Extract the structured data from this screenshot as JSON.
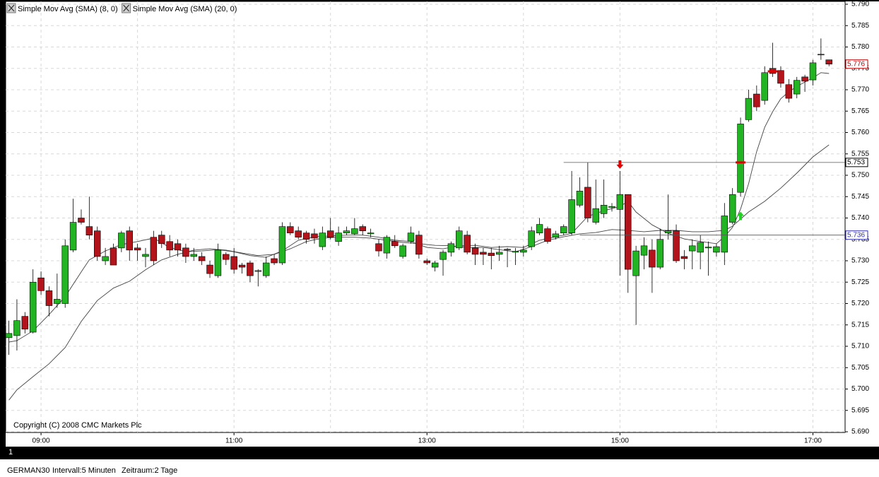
{
  "chart_data": {
    "type": "candlestick",
    "xlim": [
      518,
      1040
    ],
    "ylim": [
      5.69,
      5.79
    ],
    "xticks": [
      {
        "value": 540,
        "label": "09:00"
      },
      {
        "value": 660,
        "label": "11:00"
      },
      {
        "value": 780,
        "label": "13:00"
      },
      {
        "value": 900,
        "label": "15:00"
      },
      {
        "value": 1020,
        "label": "17:00"
      }
    ],
    "xgrid": [
      540,
      600,
      660,
      720,
      780,
      840,
      900,
      960,
      1020
    ],
    "yticks": [
      {
        "value": 5.69,
        "label": "5.690"
      },
      5.695,
      {
        "value": 5.7,
        "label": "5.700"
      },
      5.705,
      {
        "value": 5.71,
        "label": "5.710"
      },
      5.715,
      {
        "value": 5.72,
        "label": "5.720"
      },
      5.725,
      {
        "value": 5.73,
        "label": "5.730"
      },
      5.735,
      {
        "value": 5.74,
        "label": "5.740"
      },
      5.745,
      {
        "value": 5.75,
        "label": "5.750"
      },
      5.755,
      {
        "value": 5.76,
        "label": "5.760"
      },
      5.765,
      {
        "value": 5.77,
        "label": "5.770"
      },
      5.775,
      {
        "value": 5.78,
        "label": "5.780"
      },
      5.785,
      {
        "value": 5.79,
        "label": "5.790"
      }
    ],
    "grid": true,
    "up_color": "#22b422",
    "down_color": "#b3141b",
    "x": [
      520,
      525,
      530,
      535,
      540,
      545,
      550,
      555,
      560,
      565,
      570,
      575,
      580,
      585,
      590,
      595,
      600,
      605,
      610,
      615,
      620,
      625,
      630,
      635,
      640,
      645,
      650,
      655,
      660,
      665,
      670,
      675,
      680,
      685,
      690,
      695,
      700,
      705,
      710,
      715,
      720,
      725,
      730,
      735,
      740,
      745,
      750,
      755,
      760,
      765,
      770,
      775,
      780,
      785,
      790,
      795,
      800,
      805,
      810,
      815,
      820,
      825,
      830,
      835,
      840,
      845,
      850,
      855,
      860,
      865,
      870,
      875,
      880,
      885,
      890,
      895,
      900,
      905,
      910,
      915,
      920,
      925,
      930,
      935,
      940,
      945,
      950,
      955,
      960,
      965,
      970,
      975,
      980,
      985,
      990,
      995,
      1000,
      1005,
      1010,
      1015,
      1020,
      1025,
      1030
    ],
    "open": [
      5.712,
      5.7125,
      5.717,
      5.7133,
      5.726,
      5.723,
      5.72,
      5.72,
      5.7325,
      5.74,
      5.738,
      5.737,
      5.73,
      5.733,
      5.733,
      5.737,
      5.733,
      5.731,
      5.7355,
      5.736,
      5.7345,
      5.734,
      5.733,
      5.731,
      5.731,
      5.729,
      5.7265,
      5.7315,
      5.731,
      5.729,
      5.7295,
      5.7275,
      5.7265,
      5.7305,
      5.7295,
      5.738,
      5.737,
      5.7365,
      5.7363,
      5.7333,
      5.737,
      5.7345,
      5.7365,
      5.7363,
      5.738,
      5.7363,
      5.734,
      5.7318,
      5.7345,
      5.731,
      5.7345,
      5.736,
      5.73,
      5.7285,
      5.7303,
      5.732,
      5.733,
      5.736,
      5.733,
      5.732,
      5.7318,
      5.7315,
      5.7325,
      5.732,
      5.732,
      5.7333,
      5.7365,
      5.7375,
      5.7355,
      5.7365,
      5.7365,
      5.743,
      5.7472,
      5.739,
      5.741,
      5.7425,
      5.742,
      5.7455,
      5.7265,
      5.7313,
      5.7325,
      5.7285,
      5.7365,
      5.737,
      5.731,
      5.7323,
      5.732,
      5.733,
      5.732,
      5.732,
      5.739,
      5.746,
      5.763,
      5.769,
      5.7675,
      5.775,
      5.7745,
      5.7712,
      5.769,
      5.773,
      5.7723,
      5.7782,
      5.777
    ],
    "high": [
      5.716,
      5.721,
      5.718,
      5.728,
      5.7275,
      5.724,
      5.727,
      5.735,
      5.7445,
      5.742,
      5.745,
      5.738,
      5.733,
      5.734,
      5.737,
      5.738,
      5.734,
      5.733,
      5.737,
      5.737,
      5.736,
      5.735,
      5.734,
      5.733,
      5.732,
      5.73,
      5.734,
      5.732,
      5.733,
      5.7295,
      5.73,
      5.728,
      5.731,
      5.7315,
      5.739,
      5.739,
      5.738,
      5.737,
      5.7375,
      5.738,
      5.74,
      5.738,
      5.738,
      5.74,
      5.7385,
      5.7375,
      5.735,
      5.736,
      5.736,
      5.734,
      5.738,
      5.737,
      5.7305,
      5.73,
      5.7325,
      5.7345,
      5.738,
      5.737,
      5.734,
      5.733,
      5.733,
      5.7335,
      5.733,
      5.733,
      5.7335,
      5.738,
      5.74,
      5.738,
      5.737,
      5.7385,
      5.751,
      5.7495,
      5.753,
      5.749,
      5.749,
      5.7435,
      5.751,
      5.7455,
      5.7335,
      5.7355,
      5.735,
      5.7375,
      5.7455,
      5.7385,
      5.7325,
      5.735,
      5.736,
      5.7345,
      5.734,
      5.7435,
      5.747,
      5.7635,
      5.77,
      5.771,
      5.7755,
      5.781,
      5.7755,
      5.7725,
      5.773,
      5.7735,
      5.777,
      5.782,
      5.777
    ],
    "low": [
      5.708,
      5.709,
      5.713,
      5.713,
      5.722,
      5.717,
      5.719,
      5.719,
      5.732,
      5.7385,
      5.735,
      5.73,
      5.729,
      5.729,
      5.732,
      5.73,
      5.73,
      5.7285,
      5.729,
      5.733,
      5.731,
      5.731,
      5.7295,
      5.73,
      5.729,
      5.726,
      5.726,
      5.729,
      5.727,
      5.727,
      5.725,
      5.724,
      5.726,
      5.729,
      5.729,
      5.736,
      5.735,
      5.734,
      5.734,
      5.7325,
      5.735,
      5.7335,
      5.736,
      5.736,
      5.736,
      5.7355,
      5.731,
      5.7305,
      5.733,
      5.7305,
      5.734,
      5.7305,
      5.729,
      5.7275,
      5.7265,
      5.731,
      5.7325,
      5.7315,
      5.729,
      5.729,
      5.728,
      5.73,
      5.7285,
      5.729,
      5.731,
      5.7325,
      5.736,
      5.734,
      5.735,
      5.736,
      5.736,
      5.7425,
      5.739,
      5.7385,
      5.74,
      5.7415,
      5.7265,
      5.7225,
      5.715,
      5.728,
      5.7225,
      5.728,
      5.735,
      5.7295,
      5.728,
      5.728,
      5.728,
      5.7265,
      5.731,
      5.729,
      5.7385,
      5.745,
      5.7625,
      5.765,
      5.7665,
      5.773,
      5.7705,
      5.767,
      5.768,
      5.7695,
      5.771,
      5.777,
      5.7755
    ],
    "close": [
      5.713,
      5.716,
      5.714,
      5.725,
      5.723,
      5.7195,
      5.721,
      5.7335,
      5.739,
      5.739,
      5.736,
      5.731,
      5.731,
      5.729,
      5.7365,
      5.7325,
      5.7325,
      5.7315,
      5.73,
      5.734,
      5.7325,
      5.7325,
      5.731,
      5.7315,
      5.73,
      5.727,
      5.7325,
      5.7303,
      5.728,
      5.7285,
      5.7265,
      5.7277,
      5.7295,
      5.7295,
      5.738,
      5.7365,
      5.7355,
      5.735,
      5.7353,
      5.7365,
      5.7355,
      5.7365,
      5.737,
      5.7375,
      5.737,
      5.7365,
      5.7323,
      5.7355,
      5.7335,
      5.7335,
      5.7365,
      5.7315,
      5.7295,
      5.7295,
      5.732,
      5.734,
      5.737,
      5.732,
      5.7315,
      5.7315,
      5.7312,
      5.732,
      5.7327,
      5.7322,
      5.7325,
      5.737,
      5.7385,
      5.7345,
      5.7363,
      5.738,
      5.7443,
      5.7463,
      5.74,
      5.7422,
      5.743,
      5.7427,
      5.7455,
      5.728,
      5.7323,
      5.7335,
      5.7285,
      5.735,
      5.737,
      5.73,
      5.7305,
      5.7335,
      5.7343,
      5.7332,
      5.7333,
      5.7405,
      5.7455,
      5.762,
      5.768,
      5.766,
      5.774,
      5.7738,
      5.7715,
      5.768,
      5.7722,
      5.772,
      5.7763,
      5.7783,
      5.776
    ],
    "last_price_color": "#c00000",
    "series": [
      {
        "name": "Simple Mov Avg (SMA) (8, 0)",
        "color": "#444444",
        "x": [
          520,
          525,
          535,
          545,
          555,
          565,
          570,
          580,
          590,
          600,
          610,
          620,
          630,
          640,
          650,
          660,
          670,
          680,
          690,
          700,
          710,
          720,
          730,
          740,
          750,
          760,
          770,
          780,
          790,
          800,
          810,
          820,
          830,
          840,
          850,
          860,
          870,
          880,
          890,
          900,
          905,
          910,
          920,
          930,
          940,
          950,
          960,
          965,
          970,
          975,
          980,
          985,
          990,
          995,
          1000,
          1005,
          1010,
          1015,
          1020,
          1025,
          1030
        ],
        "values": [
          5.711,
          5.7113,
          5.7136,
          5.7174,
          5.7216,
          5.7274,
          5.7302,
          5.7323,
          5.7338,
          5.7345,
          5.7353,
          5.7331,
          5.7321,
          5.7323,
          5.7326,
          5.7321,
          5.7312,
          5.7308,
          5.7323,
          5.7348,
          5.7356,
          5.7358,
          5.736,
          5.736,
          5.7355,
          5.7348,
          5.7345,
          5.7331,
          5.7328,
          5.7335,
          5.7336,
          5.7331,
          5.7333,
          5.7331,
          5.7348,
          5.7356,
          5.7364,
          5.7404,
          5.7417,
          5.7427,
          5.7439,
          5.7414,
          5.7384,
          5.7364,
          5.7351,
          5.7345,
          5.734,
          5.7356,
          5.7378,
          5.7421,
          5.748,
          5.7555,
          5.7612,
          5.7649,
          5.7679,
          5.7695,
          5.7708,
          5.7718,
          5.7728,
          5.774,
          5.7738
        ]
      },
      {
        "name": "Simple Mov Avg (SMA) (20, 0)",
        "color": "#444444",
        "x": [
          520,
          525,
          535,
          545,
          555,
          565,
          575,
          585,
          595,
          605,
          615,
          625,
          635,
          645,
          655,
          665,
          675,
          685,
          695,
          705,
          715,
          725,
          735,
          745,
          755,
          765,
          775,
          785,
          795,
          805,
          815,
          825,
          835,
          845,
          855,
          865,
          875,
          885,
          895,
          905,
          915,
          925,
          935,
          945,
          955,
          965,
          970,
          980,
          990,
          1000,
          1010,
          1020,
          1030
        ],
        "values": [
          5.6974,
          5.6998,
          5.7029,
          5.7059,
          5.7097,
          5.7158,
          5.7207,
          5.7236,
          5.7252,
          5.7279,
          5.7302,
          5.7315,
          5.7325,
          5.7328,
          5.7325,
          5.7318,
          5.7312,
          5.7315,
          5.7328,
          5.7345,
          5.7353,
          5.7355,
          5.7355,
          5.7353,
          5.7348,
          5.7343,
          5.734,
          5.7336,
          5.7335,
          5.7331,
          5.7331,
          5.7326,
          5.7321,
          5.7333,
          5.7348,
          5.7356,
          5.7363,
          5.7366,
          5.7373,
          5.7371,
          5.7368,
          5.7371,
          5.7371,
          5.7368,
          5.7368,
          5.7371,
          5.7381,
          5.7414,
          5.7439,
          5.747,
          5.7505,
          5.7543,
          5.7571
        ]
      }
    ],
    "levels": [
      {
        "value": 5.753,
        "start": 865,
        "color": "#000000"
      },
      {
        "value": 5.736,
        "start": 875,
        "color": "#3030b0"
      }
    ],
    "signals": [
      {
        "x": 900,
        "y": 5.7525,
        "direction": "down",
        "color": "#e00000"
      },
      {
        "x": 975,
        "y": 5.7405,
        "direction": "up",
        "color": "#22d022"
      }
    ],
    "markers": [
      {
        "x": 975,
        "y": 5.753,
        "color": "#e00000"
      },
      {
        "x": 995,
        "y": 5.7743,
        "color": "#e00000"
      }
    ],
    "copyright": "Copyright (C) 2008 CMC Markets Plc",
    "pane_index": "1",
    "symbol": "GERMAN30",
    "interval": "Intervall:5 Minuten",
    "period": "Zeitraum:2 Tage"
  }
}
